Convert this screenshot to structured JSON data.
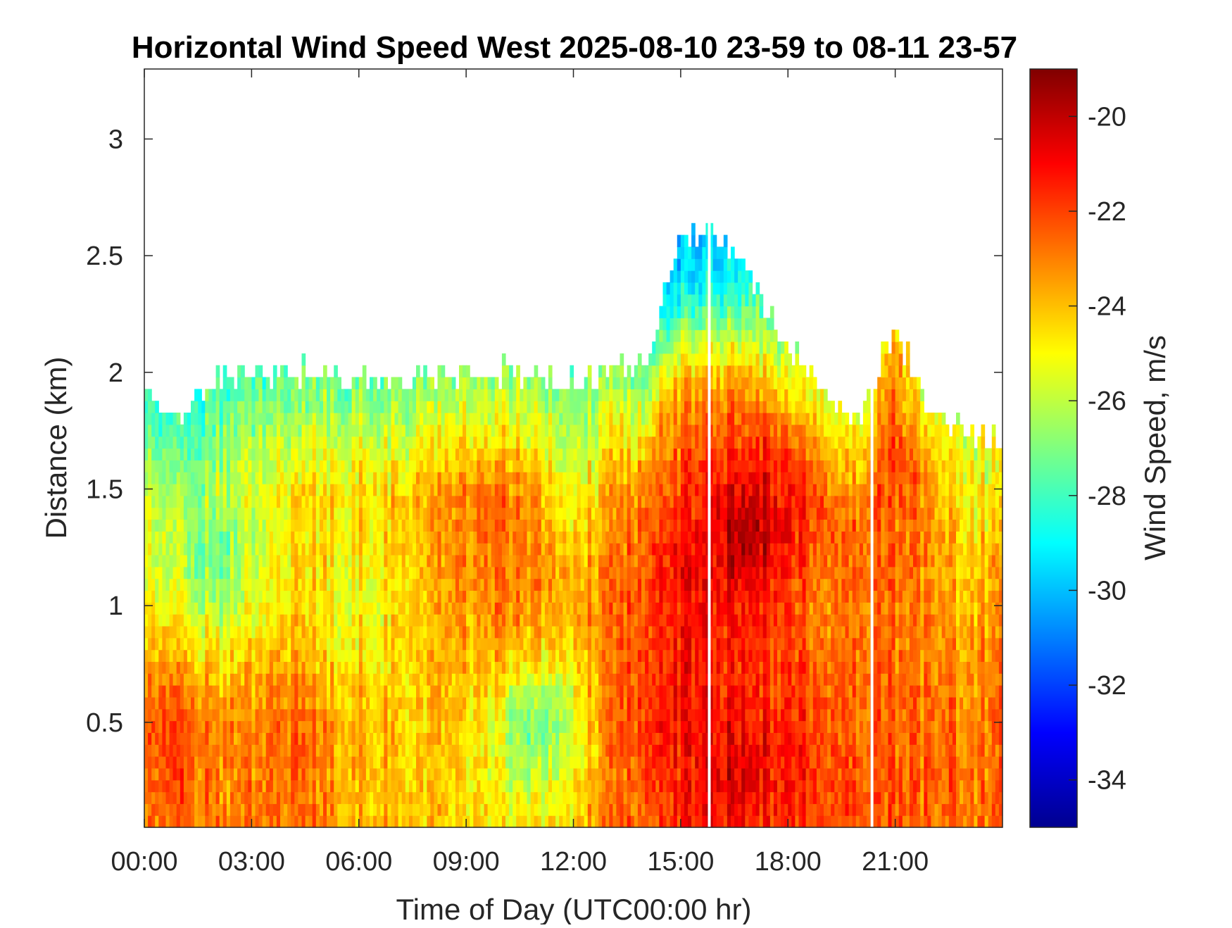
{
  "chart_data": {
    "type": "heatmap",
    "title": "Horizontal Wind Speed West 2025-08-10 23-59 to 08-11 23-57",
    "xlabel": "Time of Day (UTC00:00 hr)",
    "ylabel": "Distance (km)",
    "colorbar_label": "Wind Speed, m/s",
    "x_unit": "hours",
    "xlim": [
      0,
      24
    ],
    "ylim": [
      0.05,
      3.3
    ],
    "clim": [
      -35,
      -19
    ],
    "colormap": "jet",
    "x_ticks": [
      0,
      3,
      6,
      9,
      12,
      15,
      18,
      21
    ],
    "x_tick_labels": [
      "00:00",
      "03:00",
      "06:00",
      "09:00",
      "12:00",
      "15:00",
      "18:00",
      "21:00"
    ],
    "y_ticks": [
      0.5,
      1,
      1.5,
      2,
      2.5,
      3
    ],
    "y_tick_labels": [
      "0.5",
      "1",
      "1.5",
      "2",
      "2.5",
      "3"
    ],
    "colorbar_ticks": [
      -20,
      -22,
      -24,
      -26,
      -28,
      -30,
      -32,
      -34
    ],
    "colorbar_tick_labels": [
      "-20",
      "-22",
      "-24",
      "-26",
      "-28",
      "-30",
      "-32",
      "-34"
    ],
    "grid": false,
    "data_gaps_hours": [
      15.8,
      20.35
    ],
    "approx_data_top_km": [
      {
        "x": 0,
        "y": 1.9
      },
      {
        "x": 1,
        "y": 1.8
      },
      {
        "x": 2,
        "y": 1.98
      },
      {
        "x": 3,
        "y": 2.0
      },
      {
        "x": 4,
        "y": 2.0
      },
      {
        "x": 5,
        "y": 2.0
      },
      {
        "x": 6,
        "y": 1.97
      },
      {
        "x": 7,
        "y": 1.97
      },
      {
        "x": 8,
        "y": 1.97
      },
      {
        "x": 9,
        "y": 2.0
      },
      {
        "x": 10,
        "y": 2.0
      },
      {
        "x": 11,
        "y": 1.97
      },
      {
        "x": 12,
        "y": 1.97
      },
      {
        "x": 13,
        "y": 2.0
      },
      {
        "x": 14,
        "y": 2.05
      },
      {
        "x": 14.5,
        "y": 2.3
      },
      {
        "x": 15,
        "y": 2.6
      },
      {
        "x": 16,
        "y": 2.6
      },
      {
        "x": 17,
        "y": 2.4
      },
      {
        "x": 18,
        "y": 2.1
      },
      {
        "x": 19,
        "y": 1.9
      },
      {
        "x": 20,
        "y": 1.8
      },
      {
        "x": 21,
        "y": 2.2
      },
      {
        "x": 22,
        "y": 1.8
      },
      {
        "x": 23,
        "y": 1.75
      },
      {
        "x": 24,
        "y": 1.7
      }
    ],
    "features": [
      {
        "x": 0.5,
        "y": 0.4,
        "value": -22
      },
      {
        "x": 2,
        "y": 1.2,
        "value": -27
      },
      {
        "x": 4,
        "y": 0.4,
        "value": -22.5
      },
      {
        "x": 6,
        "y": 1.0,
        "value": -25
      },
      {
        "x": 10,
        "y": 1.0,
        "value": -23
      },
      {
        "x": 10,
        "y": 1.35,
        "value": -22.5
      },
      {
        "x": 11,
        "y": 0.5,
        "value": -27.5
      },
      {
        "x": 12,
        "y": 1.5,
        "value": -25
      },
      {
        "x": 15,
        "y": 1.1,
        "value": -21
      },
      {
        "x": 14.8,
        "y": 0.55,
        "value": -21
      },
      {
        "x": 16.8,
        "y": 1.3,
        "value": -19.5
      },
      {
        "x": 16.5,
        "y": 0.3,
        "value": -20.5
      },
      {
        "x": 15.5,
        "y": 2.4,
        "value": -27.5
      },
      {
        "x": 19,
        "y": 1.0,
        "value": -23
      },
      {
        "x": 21,
        "y": 2.1,
        "value": -21
      },
      {
        "x": 22,
        "y": 1.85,
        "value": -22
      },
      {
        "x": 23,
        "y": 1.2,
        "value": -24
      }
    ]
  }
}
